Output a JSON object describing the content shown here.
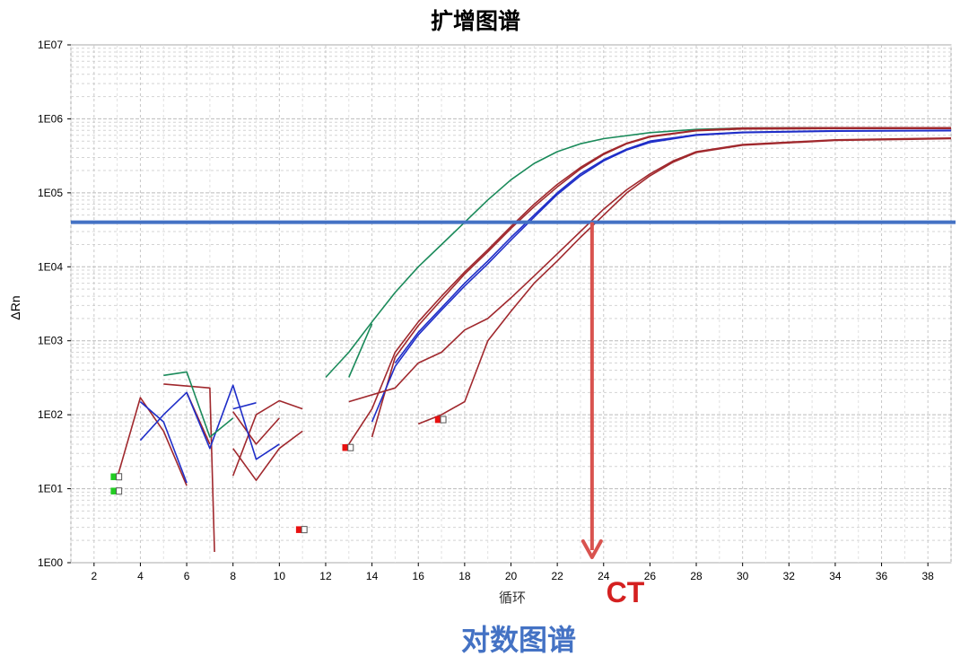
{
  "chart_data": {
    "type": "line",
    "title": "扩增图谱",
    "subtitle": "对数图谱",
    "xlabel": "循环",
    "ylabel": "ΔRn",
    "y_scale": "log",
    "xlim": [
      1,
      39
    ],
    "ylim": [
      1,
      10000000
    ],
    "x_ticks": [
      "2",
      "4",
      "6",
      "8",
      "10",
      "12",
      "14",
      "16",
      "18",
      "20",
      "22",
      "24",
      "26",
      "28",
      "30",
      "32",
      "34",
      "36",
      "38"
    ],
    "y_ticks": [
      "1E00",
      "1E01",
      "1E02",
      "1E03",
      "1E04",
      "1E05",
      "1E06",
      "1E07"
    ],
    "grid": true,
    "threshold": {
      "value": 40000,
      "color": "#4472c4"
    },
    "ct_marker": {
      "label": "CT",
      "x": 23.5,
      "color": "#d9534f",
      "label_color": "#d42020"
    },
    "series": [
      {
        "color": "#1a8a5a",
        "points": [
          [
            12,
            320
          ],
          [
            13,
            700
          ],
          [
            14,
            1800
          ],
          [
            15,
            4500
          ],
          [
            16,
            10000
          ],
          [
            17,
            20000
          ],
          [
            18,
            40000
          ],
          [
            19,
            80000
          ],
          [
            20,
            150000
          ],
          [
            21,
            250000
          ],
          [
            22,
            360000
          ],
          [
            23,
            460000
          ],
          [
            24,
            540000
          ],
          [
            26,
            650000
          ],
          [
            28,
            720000
          ],
          [
            30,
            750000
          ],
          [
            34,
            760000
          ],
          [
            39,
            760000
          ]
        ]
      },
      {
        "color": "#1a8a5a",
        "points": [
          [
            13,
            320
          ],
          [
            14,
            1700
          ]
        ]
      },
      {
        "color": "#a0282d",
        "points": [
          [
            13,
            40
          ],
          [
            14,
            120
          ],
          [
            15,
            700
          ],
          [
            16,
            1800
          ],
          [
            17,
            4000
          ],
          [
            18,
            8500
          ],
          [
            19,
            17000
          ],
          [
            20,
            35000
          ],
          [
            21,
            70000
          ],
          [
            22,
            130000
          ],
          [
            23,
            220000
          ],
          [
            24,
            340000
          ],
          [
            25,
            470000
          ],
          [
            26,
            580000
          ],
          [
            28,
            700000
          ],
          [
            30,
            750000
          ],
          [
            34,
            760000
          ],
          [
            39,
            760000
          ]
        ]
      },
      {
        "color": "#a0282d",
        "points": [
          [
            14,
            50
          ],
          [
            15,
            600
          ],
          [
            16,
            1600
          ],
          [
            17,
            3600
          ],
          [
            18,
            8000
          ],
          [
            19,
            16000
          ],
          [
            20,
            33000
          ],
          [
            21,
            65000
          ],
          [
            22,
            120000
          ],
          [
            23,
            210000
          ],
          [
            24,
            330000
          ],
          [
            25,
            460000
          ],
          [
            26,
            570000
          ],
          [
            28,
            690000
          ],
          [
            30,
            730000
          ],
          [
            34,
            740000
          ],
          [
            39,
            740000
          ]
        ]
      },
      {
        "color": "#1f2ec8",
        "points": [
          [
            14,
            80
          ],
          [
            15,
            450
          ],
          [
            16,
            1200
          ],
          [
            17,
            2600
          ],
          [
            18,
            5500
          ],
          [
            19,
            11000
          ],
          [
            20,
            23000
          ],
          [
            21,
            47000
          ],
          [
            22,
            95000
          ],
          [
            23,
            170000
          ],
          [
            24,
            270000
          ],
          [
            25,
            380000
          ],
          [
            26,
            480000
          ],
          [
            28,
            600000
          ],
          [
            30,
            650000
          ],
          [
            34,
            680000
          ],
          [
            39,
            690000
          ]
        ]
      },
      {
        "color": "#1f2ec8",
        "points": [
          [
            15,
            500
          ],
          [
            16,
            1300
          ],
          [
            17,
            2800
          ],
          [
            18,
            6000
          ],
          [
            19,
            12000
          ],
          [
            20,
            25000
          ],
          [
            21,
            50000
          ],
          [
            22,
            100000
          ],
          [
            23,
            180000
          ],
          [
            24,
            280000
          ],
          [
            25,
            390000
          ],
          [
            26,
            500000
          ],
          [
            28,
            610000
          ],
          [
            30,
            660000
          ],
          [
            34,
            690000
          ],
          [
            39,
            700000
          ]
        ]
      },
      {
        "color": "#a0282d",
        "points": [
          [
            13,
            150
          ],
          [
            15,
            230
          ],
          [
            16,
            500
          ],
          [
            17,
            700
          ],
          [
            18,
            1400
          ],
          [
            19,
            2000
          ],
          [
            20,
            3800
          ],
          [
            21,
            7500
          ],
          [
            22,
            15000
          ],
          [
            23,
            30000
          ],
          [
            24,
            60000
          ],
          [
            25,
            110000
          ],
          [
            26,
            180000
          ],
          [
            27,
            270000
          ],
          [
            28,
            360000
          ],
          [
            30,
            450000
          ],
          [
            34,
            520000
          ],
          [
            39,
            550000
          ]
        ]
      },
      {
        "color": "#a0282d",
        "points": [
          [
            16,
            75
          ],
          [
            17,
            100
          ],
          [
            18,
            150
          ],
          [
            19,
            1000
          ],
          [
            20,
            2500
          ],
          [
            21,
            6000
          ],
          [
            22,
            12000
          ],
          [
            23,
            25000
          ],
          [
            24,
            50000
          ],
          [
            25,
            100000
          ],
          [
            26,
            170000
          ],
          [
            27,
            260000
          ],
          [
            28,
            350000
          ],
          [
            30,
            440000
          ],
          [
            34,
            510000
          ],
          [
            39,
            540000
          ]
        ]
      },
      {
        "color": "#a0282d",
        "points": [
          [
            3,
            14
          ],
          [
            4,
            170
          ],
          [
            5,
            60
          ],
          [
            6,
            11
          ]
        ]
      },
      {
        "color": "#a0282d",
        "points": [
          [
            5,
            260
          ],
          [
            7,
            230
          ],
          [
            7.2,
            1.4
          ]
        ]
      },
      {
        "color": "#a0282d",
        "points": [
          [
            6,
            200
          ],
          [
            7,
            40
          ]
        ]
      },
      {
        "color": "#a0282d",
        "points": [
          [
            8,
            15
          ],
          [
            9,
            100
          ],
          [
            10,
            155
          ],
          [
            11,
            120
          ]
        ]
      },
      {
        "color": "#a0282d",
        "points": [
          [
            8,
            35
          ],
          [
            9,
            13
          ],
          [
            10,
            35
          ],
          [
            11,
            60
          ]
        ]
      },
      {
        "color": "#a0282d",
        "points": [
          [
            8,
            110
          ],
          [
            9,
            40
          ],
          [
            10,
            90
          ]
        ]
      },
      {
        "color": "#1f2ec8",
        "points": [
          [
            4,
            45
          ],
          [
            5,
            100
          ],
          [
            6,
            200
          ],
          [
            7,
            35
          ],
          [
            8,
            250
          ],
          [
            9,
            25
          ],
          [
            10,
            40
          ]
        ]
      },
      {
        "color": "#1f2ec8",
        "points": [
          [
            4,
            150
          ],
          [
            5,
            80
          ],
          [
            6,
            12
          ]
        ]
      },
      {
        "color": "#1f2ec8",
        "points": [
          [
            8,
            120
          ],
          [
            9,
            145
          ]
        ]
      },
      {
        "color": "#1a8a5a",
        "points": [
          [
            5,
            340
          ],
          [
            6,
            380
          ],
          [
            7,
            50
          ],
          [
            8,
            90
          ]
        ]
      }
    ],
    "markers": [
      {
        "x": 3,
        "y": 14.5,
        "color": "#22cc22"
      },
      {
        "x": 3,
        "y": 9.3,
        "color": "#22cc22"
      },
      {
        "x": 11,
        "y": 2.8,
        "color": "#e81010"
      },
      {
        "x": 13,
        "y": 36,
        "color": "#e81010"
      },
      {
        "x": 17,
        "y": 86,
        "color": "#e81010"
      }
    ]
  }
}
